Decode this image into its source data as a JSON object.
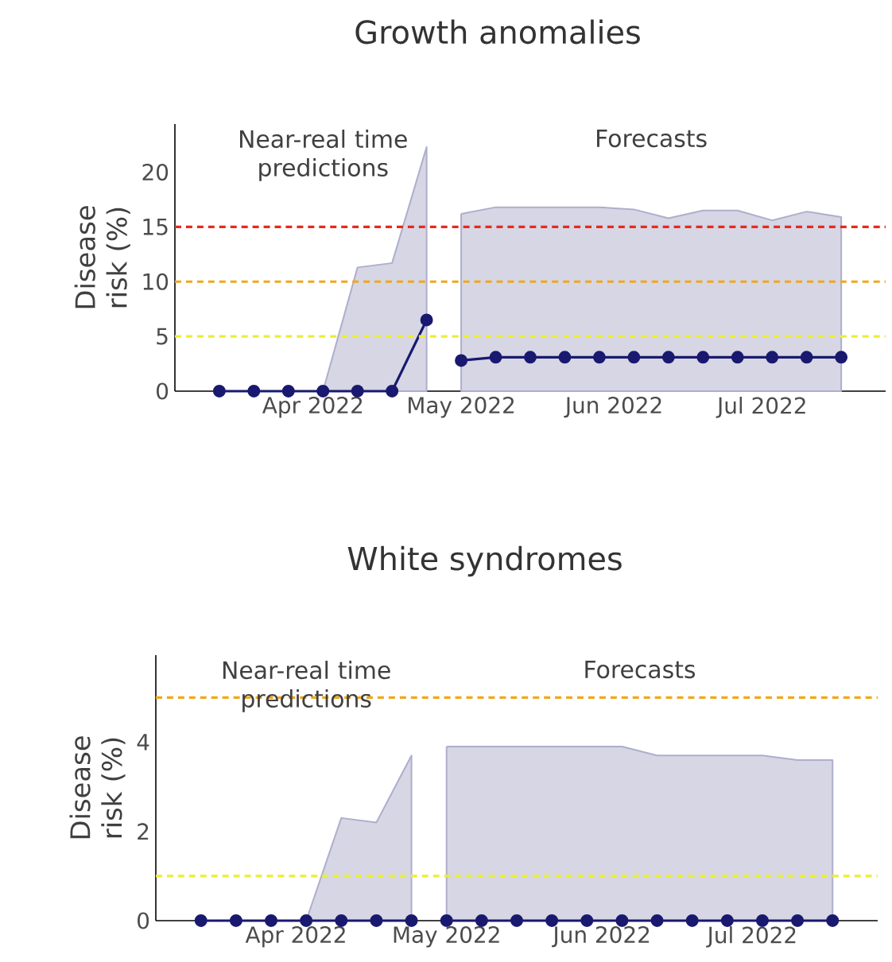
{
  "chart_data": [
    {
      "type": "line",
      "title": "Growth anomalies",
      "ylabel": "Disease risk (%)",
      "annotations": [
        "Near-real time predictions",
        "Forecasts"
      ],
      "xlim": [
        "2022-03-04",
        "2022-07-26"
      ],
      "xticks": [
        {
          "value": "2022-04-01",
          "label": "Apr 2022"
        },
        {
          "value": "2022-05-01",
          "label": "May 2022"
        },
        {
          "value": "2022-06-01",
          "label": "Jun 2022"
        },
        {
          "value": "2022-07-01",
          "label": "Jul 2022"
        }
      ],
      "ylim": [
        0,
        24.4
      ],
      "yticks": [
        0,
        5,
        10,
        15,
        20
      ],
      "marker": "circle",
      "line_style": "solid",
      "ref_lines": [
        {
          "axis": "y",
          "value": 15,
          "color": "#e8291c",
          "line_style": "dashed"
        },
        {
          "axis": "y",
          "value": 10,
          "color": "#f0a81c",
          "line_style": "dashed"
        },
        {
          "axis": "y",
          "value": 5,
          "color": "#eeee30",
          "line_style": "dashed"
        }
      ],
      "series": [
        {
          "color": "#191970",
          "x": [
            "2022-03-13",
            "2022-03-20",
            "2022-03-27",
            "2022-04-03",
            "2022-04-10",
            "2022-04-17",
            "2022-04-24"
          ],
          "values": [
            0,
            0,
            0,
            0,
            0,
            0,
            6.5
          ],
          "lower": [
            0,
            0,
            0,
            0,
            0,
            0,
            0
          ],
          "upper": [
            0,
            0,
            0,
            0,
            11.3,
            11.7,
            22.3
          ]
        },
        {
          "color": "#191970",
          "x": [
            "2022-05-01",
            "2022-05-08",
            "2022-05-15",
            "2022-05-22",
            "2022-05-29",
            "2022-06-05",
            "2022-06-12",
            "2022-06-19",
            "2022-06-26",
            "2022-07-03",
            "2022-07-10",
            "2022-07-17"
          ],
          "values": [
            2.8,
            3.1,
            3.1,
            3.1,
            3.1,
            3.1,
            3.1,
            3.1,
            3.1,
            3.1,
            3.1,
            3.1
          ],
          "lower": [
            0,
            0,
            0,
            0,
            0,
            0,
            0,
            0,
            0,
            0,
            0,
            0
          ],
          "upper": [
            16.2,
            16.8,
            16.8,
            16.8,
            16.8,
            16.6,
            15.8,
            16.5,
            16.5,
            15.6,
            16.4,
            15.9
          ]
        }
      ]
    },
    {
      "type": "line",
      "title": "White syndromes",
      "ylabel": "Disease risk (%)",
      "annotations": [
        "Near-real time predictions",
        "Forecasts"
      ],
      "xlim": [
        "2022-03-04",
        "2022-07-26"
      ],
      "xticks": [
        {
          "value": "2022-04-01",
          "label": "Apr 2022"
        },
        {
          "value": "2022-05-01",
          "label": "May 2022"
        },
        {
          "value": "2022-06-01",
          "label": "Jun 2022"
        },
        {
          "value": "2022-07-01",
          "label": "Jul 2022"
        }
      ],
      "ylim": [
        0,
        5.95
      ],
      "yticks": [
        0,
        2,
        4
      ],
      "marker": "circle",
      "line_style": "solid",
      "ref_lines": [
        {
          "axis": "y",
          "value": 5,
          "color": "#f0a81c",
          "line_style": "dashed"
        },
        {
          "axis": "y",
          "value": 1,
          "color": "#eeee30",
          "line_style": "dashed"
        }
      ],
      "series": [
        {
          "color": "#191970",
          "x": [
            "2022-03-13",
            "2022-03-20",
            "2022-03-27",
            "2022-04-03",
            "2022-04-10",
            "2022-04-17",
            "2022-04-24"
          ],
          "values": [
            0,
            0,
            0,
            0,
            0,
            0,
            0
          ],
          "lower": [
            0,
            0,
            0,
            0,
            0,
            0,
            0
          ],
          "upper": [
            0,
            0,
            0,
            0,
            2.3,
            2.2,
            3.7
          ]
        },
        {
          "color": "#191970",
          "x": [
            "2022-05-01",
            "2022-05-08",
            "2022-05-15",
            "2022-05-22",
            "2022-05-29",
            "2022-06-05",
            "2022-06-12",
            "2022-06-19",
            "2022-06-26",
            "2022-07-03",
            "2022-07-10",
            "2022-07-17"
          ],
          "values": [
            0,
            0,
            0,
            0,
            0,
            0,
            0,
            0,
            0,
            0,
            0,
            0
          ],
          "lower": [
            0,
            0,
            0,
            0,
            0,
            0,
            0,
            0,
            0,
            0,
            0,
            0
          ],
          "upper": [
            3.9,
            3.9,
            3.9,
            3.9,
            3.9,
            3.9,
            3.7,
            3.7,
            3.7,
            3.7,
            3.6,
            3.6
          ]
        }
      ]
    }
  ]
}
